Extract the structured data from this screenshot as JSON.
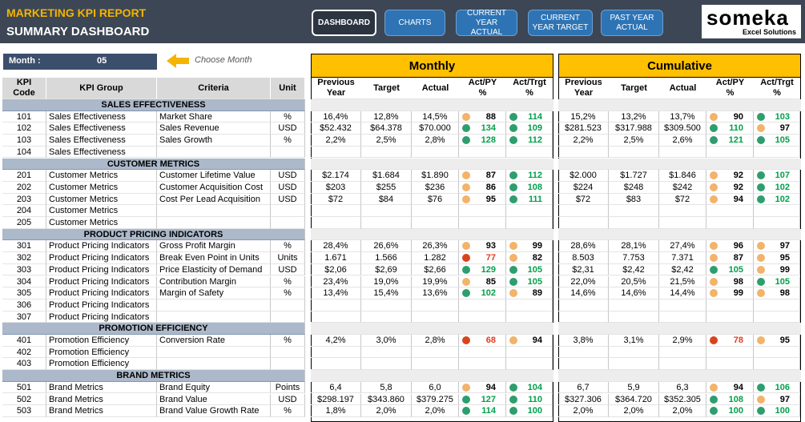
{
  "header": {
    "title": "MARKETING KPI REPORT",
    "subtitle": "SUMMARY DASHBOARD"
  },
  "nav": [
    "DASHBOARD",
    "CHARTS",
    "CURRENT YEAR ACTUAL",
    "CURRENT YEAR TARGET",
    "PAST YEAR ACTUAL"
  ],
  "logo": {
    "name": "someka",
    "tagline": "Excel Solutions"
  },
  "month": {
    "label": "Month :",
    "value": "05",
    "hint": "Choose Month"
  },
  "table": {
    "columns": [
      "KPI Code",
      "KPI Group",
      "Criteria",
      "Unit"
    ],
    "panels": [
      "Monthly",
      "Cumulative"
    ],
    "panel_columns": [
      "Previous\nYear",
      "Target",
      "Actual",
      "Act/PY\n%",
      "Act/Trgt\n%"
    ],
    "sections": [
      {
        "title": "SALES EFFECTIVENESS",
        "rows": [
          {
            "code": "101",
            "group": "Sales Effectiveness",
            "criteria": "Market Share",
            "unit": "%",
            "monthly": [
              "16,4%",
              "12,8%",
              "14,5%",
              88,
              114
            ],
            "cumulative": [
              "15,2%",
              "13,2%",
              "13,7%",
              90,
              103
            ]
          },
          {
            "code": "102",
            "group": "Sales Effectiveness",
            "criteria": "Sales Revenue",
            "unit": "USD",
            "monthly": [
              "$52.432",
              "$64.378",
              "$70.000",
              134,
              109
            ],
            "cumulative": [
              "$281.523",
              "$317.988",
              "$309.500",
              110,
              97
            ]
          },
          {
            "code": "103",
            "group": "Sales Effectiveness",
            "criteria": "Sales Growth",
            "unit": "%",
            "monthly": [
              "2,2%",
              "2,5%",
              "2,8%",
              128,
              112
            ],
            "cumulative": [
              "2,2%",
              "2,5%",
              "2,6%",
              121,
              105
            ]
          },
          {
            "code": "104",
            "group": "Sales Effectiveness"
          }
        ]
      },
      {
        "title": "CUSTOMER METRICS",
        "rows": [
          {
            "code": "201",
            "group": "Customer Metrics",
            "criteria": "Customer Lifetime Value",
            "unit": "USD",
            "monthly": [
              "$2.174",
              "$1.684",
              "$1.890",
              87,
              112
            ],
            "cumulative": [
              "$2.000",
              "$1.727",
              "$1.846",
              92,
              107
            ]
          },
          {
            "code": "202",
            "group": "Customer Metrics",
            "criteria": "Customer Acquisition Cost",
            "unit": "USD",
            "monthly": [
              "$203",
              "$255",
              "$236",
              86,
              108
            ],
            "cumulative": [
              "$224",
              "$248",
              "$242",
              92,
              102
            ]
          },
          {
            "code": "203",
            "group": "Customer Metrics",
            "criteria": "Cost Per Lead Acquisition",
            "unit": "USD",
            "monthly": [
              "$72",
              "$84",
              "$76",
              95,
              111
            ],
            "cumulative": [
              "$72",
              "$83",
              "$72",
              94,
              102
            ]
          },
          {
            "code": "204",
            "group": "Customer Metrics"
          },
          {
            "code": "205",
            "group": "Customer Metrics"
          }
        ]
      },
      {
        "title": "PRODUCT PRICING INDICATORS",
        "rows": [
          {
            "code": "301",
            "group": "Product Pricing Indicators",
            "criteria": "Gross Profit Margin",
            "unit": "%",
            "monthly": [
              "28,4%",
              "26,6%",
              "26,3%",
              93,
              99
            ],
            "cumulative": [
              "28,6%",
              "28,1%",
              "27,4%",
              96,
              97
            ]
          },
          {
            "code": "302",
            "group": "Product Pricing Indicators",
            "criteria": "Break Even Point in Units",
            "unit": "Units",
            "monthly": [
              "1.671",
              "1.566",
              "1.282",
              77,
              82
            ],
            "cumulative": [
              "8.503",
              "7.753",
              "7.371",
              87,
              95
            ]
          },
          {
            "code": "303",
            "group": "Product Pricing Indicators",
            "criteria": "Price Elasticity of Demand",
            "unit": "USD",
            "monthly": [
              "$2,06",
              "$2,69",
              "$2,66",
              129,
              105
            ],
            "cumulative": [
              "$2,31",
              "$2,42",
              "$2,42",
              105,
              99
            ]
          },
          {
            "code": "304",
            "group": "Product Pricing Indicators",
            "criteria": "Contribution Margin",
            "unit": "%",
            "monthly": [
              "23,4%",
              "19,0%",
              "19,9%",
              85,
              105
            ],
            "cumulative": [
              "22,0%",
              "20,5%",
              "21,5%",
              98,
              105
            ]
          },
          {
            "code": "305",
            "group": "Product Pricing Indicators",
            "criteria": "Margin of Safety",
            "unit": "%",
            "monthly": [
              "13,4%",
              "15,4%",
              "13,6%",
              102,
              89
            ],
            "cumulative": [
              "14,6%",
              "14,6%",
              "14,4%",
              99,
              98
            ]
          },
          {
            "code": "306",
            "group": "Product Pricing Indicators"
          },
          {
            "code": "307",
            "group": "Product Pricing Indicators"
          }
        ]
      },
      {
        "title": "PROMOTION EFFICIENCY",
        "rows": [
          {
            "code": "401",
            "group": "Promotion Efficiency",
            "criteria": "Conversion Rate",
            "unit": "%",
            "monthly": [
              "4,2%",
              "3,0%",
              "2,8%",
              68,
              94
            ],
            "cumulative": [
              "3,8%",
              "3,1%",
              "2,9%",
              78,
              95
            ]
          },
          {
            "code": "402",
            "group": "Promotion Efficiency"
          },
          {
            "code": "403",
            "group": "Promotion Efficiency"
          }
        ]
      },
      {
        "title": "BRAND METRICS",
        "rows": [
          {
            "code": "501",
            "group": "Brand Metrics",
            "criteria": "Brand Equity",
            "unit": "Points",
            "monthly": [
              "6,4",
              "5,8",
              "6,0",
              94,
              104
            ],
            "cumulative": [
              "6,7",
              "5,9",
              "6,3",
              94,
              106
            ]
          },
          {
            "code": "502",
            "group": "Brand Metrics",
            "criteria": "Brand Value",
            "unit": "USD",
            "monthly": [
              "$298.197",
              "$343.860",
              "$379.275",
              127,
              110
            ],
            "cumulative": [
              "$327.306",
              "$364.720",
              "$352.305",
              108,
              97
            ]
          },
          {
            "code": "503",
            "group": "Brand Metrics",
            "criteria": "Brand Value Growth Rate",
            "unit": "%",
            "monthly": [
              "1,8%",
              "2,0%",
              "2,0%",
              114,
              100
            ],
            "cumulative": [
              "2,0%",
              "2,0%",
              "2,0%",
              100,
              100
            ]
          }
        ]
      }
    ]
  }
}
